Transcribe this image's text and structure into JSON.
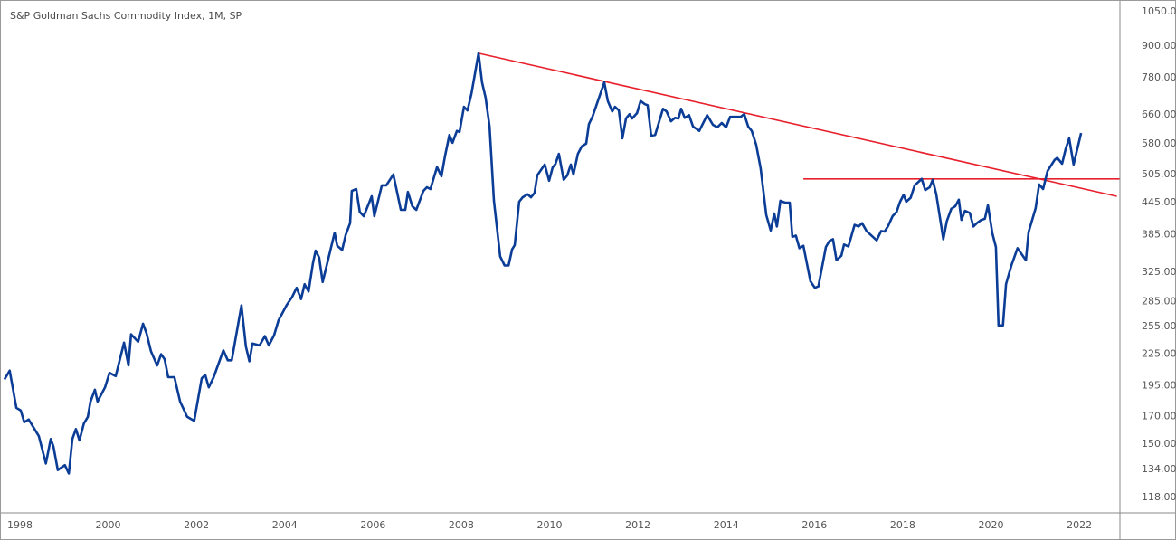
{
  "chart_data": {
    "type": "line",
    "title": "S&P Goldman Sachs Commodity Index, 1M, SP",
    "xlabel": "",
    "ylabel": "",
    "yscale": "log",
    "xlim": [
      1997.55,
      2022.92
    ],
    "ylim": [
      109.7,
      1103
    ],
    "grid": false,
    "x_ticks": [
      1998,
      2000,
      2002,
      2004,
      2006,
      2008,
      2010,
      2012,
      2014,
      2016,
      2018,
      2020,
      2022
    ],
    "y_ticks": [
      "1050.00",
      "900.00",
      "780.00",
      "660.00",
      "580.00",
      "505.00",
      "445.00",
      "385.00",
      "325.00",
      "285.00",
      "255.00",
      "225.00",
      "195.00",
      "170.00",
      "150.00",
      "134.00",
      "118.00"
    ],
    "colors": {
      "series": "#0b3d97",
      "trendline": "#e8202c",
      "axis": "#8a8a8a",
      "text": "#555555"
    },
    "series": [
      {
        "name": "S&P GSCI",
        "points": [
          [
            1997.65,
            200
          ],
          [
            1997.77,
            208
          ],
          [
            1997.92,
            176
          ],
          [
            1998.02,
            174
          ],
          [
            1998.1,
            165
          ],
          [
            1998.2,
            167
          ],
          [
            1998.43,
            155
          ],
          [
            1998.59,
            137
          ],
          [
            1998.7,
            153
          ],
          [
            1998.76,
            148
          ],
          [
            1998.86,
            133
          ],
          [
            1999.02,
            136
          ],
          [
            1999.11,
            131
          ],
          [
            1999.19,
            153
          ],
          [
            1999.27,
            160
          ],
          [
            1999.35,
            152
          ],
          [
            1999.45,
            164
          ],
          [
            1999.54,
            169
          ],
          [
            1999.6,
            181
          ],
          [
            1999.7,
            191
          ],
          [
            1999.76,
            181
          ],
          [
            1999.93,
            193
          ],
          [
            2000.03,
            206
          ],
          [
            2000.17,
            203
          ],
          [
            2000.36,
            236
          ],
          [
            2000.46,
            213
          ],
          [
            2000.52,
            245
          ],
          [
            2000.68,
            237
          ],
          [
            2000.79,
            257
          ],
          [
            2000.87,
            246
          ],
          [
            2000.97,
            227
          ],
          [
            2001.11,
            213
          ],
          [
            2001.2,
            224
          ],
          [
            2001.28,
            219
          ],
          [
            2001.36,
            202
          ],
          [
            2001.5,
            202
          ],
          [
            2001.63,
            181
          ],
          [
            2001.79,
            169
          ],
          [
            2001.95,
            166
          ],
          [
            2002.12,
            201
          ],
          [
            2002.2,
            204
          ],
          [
            2002.28,
            193
          ],
          [
            2002.39,
            202
          ],
          [
            2002.61,
            228
          ],
          [
            2002.71,
            218
          ],
          [
            2002.8,
            218
          ],
          [
            2003.02,
            279
          ],
          [
            2003.12,
            232
          ],
          [
            2003.2,
            217
          ],
          [
            2003.27,
            235
          ],
          [
            2003.43,
            233
          ],
          [
            2003.55,
            243
          ],
          [
            2003.64,
            233
          ],
          [
            2003.76,
            244
          ],
          [
            2003.86,
            261
          ],
          [
            2004.05,
            280
          ],
          [
            2004.17,
            290
          ],
          [
            2004.27,
            302
          ],
          [
            2004.37,
            287
          ],
          [
            2004.45,
            307
          ],
          [
            2004.54,
            297
          ],
          [
            2004.64,
            338
          ],
          [
            2004.7,
            357
          ],
          [
            2004.78,
            346
          ],
          [
            2004.86,
            310
          ],
          [
            2005.13,
            387
          ],
          [
            2005.19,
            365
          ],
          [
            2005.3,
            358
          ],
          [
            2005.38,
            383
          ],
          [
            2005.48,
            404
          ],
          [
            2005.52,
            467
          ],
          [
            2005.62,
            471
          ],
          [
            2005.7,
            425
          ],
          [
            2005.79,
            417
          ],
          [
            2005.97,
            456
          ],
          [
            2006.03,
            417
          ],
          [
            2006.2,
            479
          ],
          [
            2006.3,
            479
          ],
          [
            2006.46,
            503
          ],
          [
            2006.63,
            429
          ],
          [
            2006.73,
            429
          ],
          [
            2006.79,
            465
          ],
          [
            2006.89,
            436
          ],
          [
            2006.98,
            429
          ],
          [
            2007.14,
            467
          ],
          [
            2007.22,
            475
          ],
          [
            2007.3,
            471
          ],
          [
            2007.45,
            520
          ],
          [
            2007.55,
            499
          ],
          [
            2007.63,
            546
          ],
          [
            2007.73,
            601
          ],
          [
            2007.8,
            580
          ],
          [
            2007.9,
            612
          ],
          [
            2007.96,
            609
          ],
          [
            2008.06,
            682
          ],
          [
            2008.14,
            671
          ],
          [
            2008.23,
            724
          ],
          [
            2008.39,
            868
          ],
          [
            2008.47,
            761
          ],
          [
            2008.55,
            711
          ],
          [
            2008.64,
            624
          ],
          [
            2008.74,
            447
          ],
          [
            2008.88,
            348
          ],
          [
            2008.98,
            334
          ],
          [
            2009.07,
            334
          ],
          [
            2009.15,
            359
          ],
          [
            2009.21,
            366
          ],
          [
            2009.31,
            445
          ],
          [
            2009.39,
            454
          ],
          [
            2009.5,
            460
          ],
          [
            2009.58,
            454
          ],
          [
            2009.66,
            463
          ],
          [
            2009.72,
            501
          ],
          [
            2009.89,
            526
          ],
          [
            2009.99,
            489
          ],
          [
            2010.07,
            519
          ],
          [
            2010.13,
            527
          ],
          [
            2010.21,
            552
          ],
          [
            2010.32,
            491
          ],
          [
            2010.4,
            501
          ],
          [
            2010.48,
            526
          ],
          [
            2010.54,
            503
          ],
          [
            2010.64,
            552
          ],
          [
            2010.73,
            571
          ],
          [
            2010.83,
            578
          ],
          [
            2010.89,
            631
          ],
          [
            2010.97,
            652
          ],
          [
            2011.07,
            690
          ],
          [
            2011.24,
            761
          ],
          [
            2011.32,
            700
          ],
          [
            2011.42,
            668
          ],
          [
            2011.48,
            682
          ],
          [
            2011.57,
            671
          ],
          [
            2011.65,
            592
          ],
          [
            2011.73,
            647
          ],
          [
            2011.81,
            660
          ],
          [
            2011.87,
            647
          ],
          [
            2011.98,
            663
          ],
          [
            2012.06,
            700
          ],
          [
            2012.16,
            690
          ],
          [
            2012.22,
            687
          ],
          [
            2012.3,
            599
          ],
          [
            2012.39,
            601
          ],
          [
            2012.57,
            676
          ],
          [
            2012.65,
            668
          ],
          [
            2012.75,
            639
          ],
          [
            2012.84,
            649
          ],
          [
            2012.92,
            647
          ],
          [
            2012.98,
            676
          ],
          [
            2013.06,
            649
          ],
          [
            2013.16,
            657
          ],
          [
            2013.25,
            624
          ],
          [
            2013.39,
            612
          ],
          [
            2013.57,
            657
          ],
          [
            2013.7,
            629
          ],
          [
            2013.8,
            622
          ],
          [
            2013.9,
            634
          ],
          [
            2014.0,
            622
          ],
          [
            2014.09,
            652
          ],
          [
            2014.21,
            652
          ],
          [
            2014.33,
            652
          ],
          [
            2014.41,
            660
          ],
          [
            2014.5,
            624
          ],
          [
            2014.58,
            612
          ],
          [
            2014.68,
            575
          ],
          [
            2014.78,
            518
          ],
          [
            2014.91,
            419
          ],
          [
            2015.01,
            391
          ],
          [
            2015.09,
            422
          ],
          [
            2015.15,
            398
          ],
          [
            2015.23,
            447
          ],
          [
            2015.34,
            443
          ],
          [
            2015.44,
            443
          ],
          [
            2015.5,
            380
          ],
          [
            2015.58,
            382
          ],
          [
            2015.66,
            361
          ],
          [
            2015.75,
            365
          ],
          [
            2015.91,
            311
          ],
          [
            2016.01,
            302
          ],
          [
            2016.09,
            304
          ],
          [
            2016.26,
            363
          ],
          [
            2016.34,
            373
          ],
          [
            2016.42,
            376
          ],
          [
            2016.5,
            342
          ],
          [
            2016.61,
            349
          ],
          [
            2016.67,
            367
          ],
          [
            2016.77,
            364
          ],
          [
            2016.91,
            401
          ],
          [
            2017.0,
            398
          ],
          [
            2017.08,
            404
          ],
          [
            2017.18,
            390
          ],
          [
            2017.41,
            374
          ],
          [
            2017.51,
            390
          ],
          [
            2017.59,
            389
          ],
          [
            2017.67,
            399
          ],
          [
            2017.77,
            417
          ],
          [
            2017.86,
            425
          ],
          [
            2017.94,
            445
          ],
          [
            2018.02,
            459
          ],
          [
            2018.08,
            445
          ],
          [
            2018.18,
            453
          ],
          [
            2018.27,
            479
          ],
          [
            2018.43,
            493
          ],
          [
            2018.51,
            469
          ],
          [
            2018.61,
            475
          ],
          [
            2018.68,
            491
          ],
          [
            2018.76,
            460
          ],
          [
            2018.92,
            376
          ],
          [
            2019.0,
            408
          ],
          [
            2019.1,
            431
          ],
          [
            2019.19,
            436
          ],
          [
            2019.27,
            449
          ],
          [
            2019.33,
            410
          ],
          [
            2019.41,
            427
          ],
          [
            2019.52,
            423
          ],
          [
            2019.6,
            398
          ],
          [
            2019.68,
            404
          ],
          [
            2019.78,
            410
          ],
          [
            2019.86,
            412
          ],
          [
            2019.93,
            438
          ],
          [
            2020.03,
            386
          ],
          [
            2020.11,
            363
          ],
          [
            2020.17,
            255
          ],
          [
            2020.27,
            255
          ],
          [
            2020.34,
            307
          ],
          [
            2020.46,
            334
          ],
          [
            2020.6,
            361
          ],
          [
            2020.79,
            342
          ],
          [
            2020.85,
            388
          ],
          [
            2021.01,
            432
          ],
          [
            2021.09,
            481
          ],
          [
            2021.18,
            471
          ],
          [
            2021.28,
            511
          ],
          [
            2021.44,
            537
          ],
          [
            2021.5,
            542
          ],
          [
            2021.61,
            528
          ],
          [
            2021.69,
            564
          ],
          [
            2021.77,
            592
          ],
          [
            2021.87,
            526
          ],
          [
            2022.04,
            606
          ]
        ]
      }
    ],
    "annotations": [
      {
        "type": "trendline",
        "name": "descending-resistance",
        "from": [
          2008.39,
          868
        ],
        "to": [
          2022.85,
          456
        ]
      },
      {
        "type": "horizontal-line",
        "name": "horizontal-resistance",
        "from": [
          2015.75,
          493
        ],
        "to": [
          2022.92,
          493
        ]
      }
    ]
  }
}
